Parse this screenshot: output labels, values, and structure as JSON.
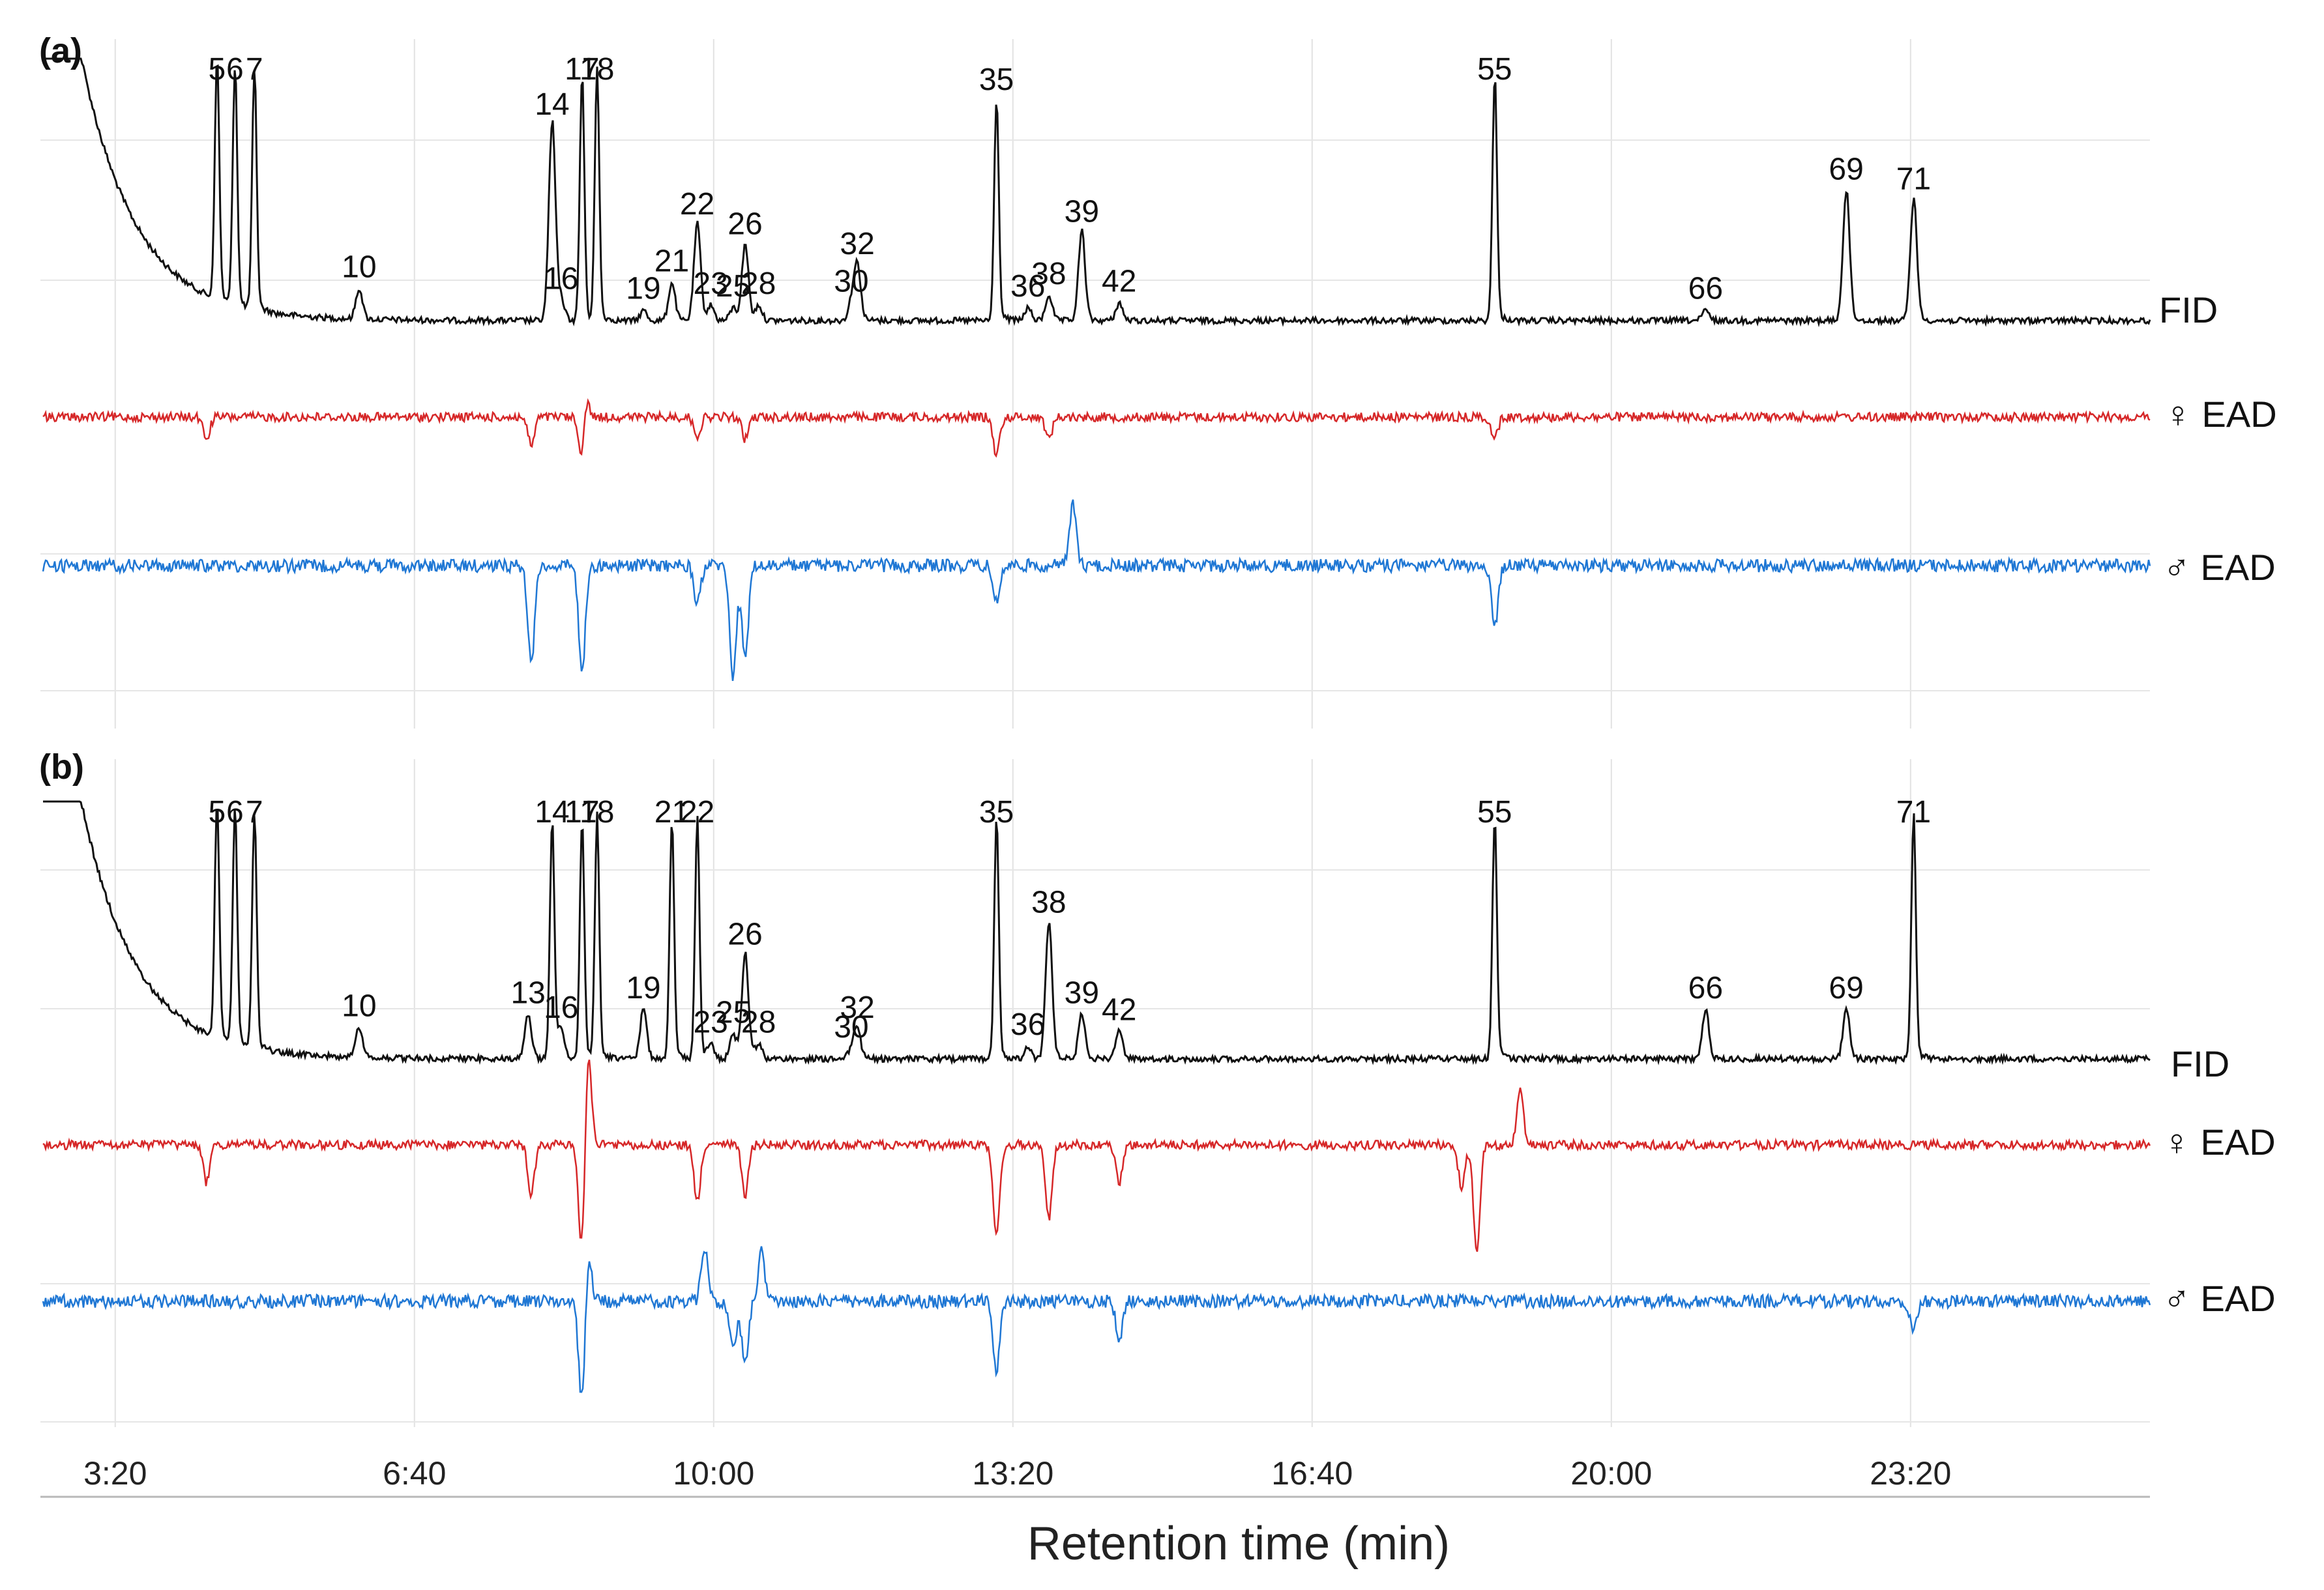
{
  "chart_data": {
    "type": "line",
    "title": "",
    "xlabel": "Retention time (min)",
    "xlim_seconds": [
      150,
      1560
    ],
    "x_ticks": [
      {
        "label": "3:20",
        "seconds": 200
      },
      {
        "label": "6:40",
        "seconds": 400
      },
      {
        "label": "10:00",
        "seconds": 600
      },
      {
        "label": "13:20",
        "seconds": 800
      },
      {
        "label": "16:40",
        "seconds": 1000
      },
      {
        "label": "20:00",
        "seconds": 1200
      },
      {
        "label": "23:20",
        "seconds": 1400
      }
    ],
    "grid": true,
    "trace_colors": {
      "FID": "#111111",
      "female_EAD": "#d62728",
      "male_EAD": "#1f77d4"
    },
    "panels": [
      {
        "label": "(a)",
        "traces": [
          {
            "name": "FID",
            "label": "FID"
          },
          {
            "name": "female_EAD",
            "label": "♀ EAD"
          },
          {
            "name": "male_EAD",
            "label": "♂ EAD"
          }
        ],
        "fid_peaks": [
          {
            "id": "5",
            "t": 268,
            "h": 0.95
          },
          {
            "id": "6",
            "t": 280,
            "h": 0.95
          },
          {
            "id": "7",
            "t": 293,
            "h": 0.95
          },
          {
            "id": "10",
            "t": 363,
            "h": 0.12
          },
          {
            "id": "14",
            "t": 492,
            "h": 0.78
          },
          {
            "id": "16",
            "t": 498,
            "h": 0.08
          },
          {
            "id": "17",
            "t": 512,
            "h": 0.97
          },
          {
            "id": "18",
            "t": 522,
            "h": 0.97
          },
          {
            "id": "19",
            "t": 553,
            "h": 0.04
          },
          {
            "id": "21",
            "t": 572,
            "h": 0.15
          },
          {
            "id": "22",
            "t": 589,
            "h": 0.38
          },
          {
            "id": "23",
            "t": 598,
            "h": 0.06
          },
          {
            "id": "25",
            "t": 613,
            "h": 0.05
          },
          {
            "id": "26",
            "t": 621,
            "h": 0.3
          },
          {
            "id": "28",
            "t": 630,
            "h": 0.06
          },
          {
            "id": "30",
            "t": 692,
            "h": 0.07
          },
          {
            "id": "32",
            "t": 696,
            "h": 0.22
          },
          {
            "id": "35",
            "t": 789,
            "h": 0.88
          },
          {
            "id": "36",
            "t": 810,
            "h": 0.05
          },
          {
            "id": "38",
            "t": 824,
            "h": 0.1
          },
          {
            "id": "39",
            "t": 846,
            "h": 0.35
          },
          {
            "id": "42",
            "t": 871,
            "h": 0.07
          },
          {
            "id": "55",
            "t": 1122,
            "h": 0.97
          },
          {
            "id": "66",
            "t": 1263,
            "h": 0.04
          },
          {
            "id": "69",
            "t": 1357,
            "h": 0.52
          },
          {
            "id": "71",
            "t": 1402,
            "h": 0.48
          }
        ],
        "female_ead_responses": [
          {
            "t": 261,
            "amp": -0.35
          },
          {
            "t": 478,
            "amp": -0.45
          },
          {
            "t": 512,
            "amp": -0.85
          },
          {
            "t": 514,
            "amp": 0.55
          },
          {
            "t": 589,
            "amp": -0.3
          },
          {
            "t": 621,
            "amp": -0.35
          },
          {
            "t": 789,
            "amp": -0.6
          },
          {
            "t": 824,
            "amp": -0.35
          },
          {
            "t": 1122,
            "amp": -0.35
          }
        ],
        "male_ead_responses": [
          {
            "t": 478,
            "amp": -0.8
          },
          {
            "t": 512,
            "amp": -0.85
          },
          {
            "t": 589,
            "amp": -0.3
          },
          {
            "t": 613,
            "amp": -0.9
          },
          {
            "t": 621,
            "amp": -0.75
          },
          {
            "t": 789,
            "amp": -0.3
          },
          {
            "t": 840,
            "amp": 0.5
          },
          {
            "t": 1122,
            "amp": -0.5
          }
        ]
      },
      {
        "label": "(b)",
        "traces": [
          {
            "name": "FID",
            "label": "FID"
          },
          {
            "name": "female_EAD",
            "label": "♀ EAD"
          },
          {
            "name": "male_EAD",
            "label": "♂ EAD"
          }
        ],
        "fid_peaks": [
          {
            "id": "5",
            "t": 268,
            "h": 0.95
          },
          {
            "id": "6",
            "t": 280,
            "h": 0.95
          },
          {
            "id": "7",
            "t": 293,
            "h": 0.95
          },
          {
            "id": "10",
            "t": 363,
            "h": 0.12
          },
          {
            "id": "13",
            "t": 476,
            "h": 0.18
          },
          {
            "id": "14",
            "t": 492,
            "h": 0.95
          },
          {
            "id": "16",
            "t": 498,
            "h": 0.12
          },
          {
            "id": "17",
            "t": 512,
            "h": 0.95
          },
          {
            "id": "18",
            "t": 522,
            "h": 0.95
          },
          {
            "id": "19",
            "t": 553,
            "h": 0.2
          },
          {
            "id": "21",
            "t": 572,
            "h": 0.95
          },
          {
            "id": "22",
            "t": 589,
            "h": 0.95
          },
          {
            "id": "23",
            "t": 598,
            "h": 0.06
          },
          {
            "id": "25",
            "t": 613,
            "h": 0.1
          },
          {
            "id": "26",
            "t": 621,
            "h": 0.42
          },
          {
            "id": "28",
            "t": 630,
            "h": 0.06
          },
          {
            "id": "30",
            "t": 692,
            "h": 0.04
          },
          {
            "id": "32",
            "t": 696,
            "h": 0.12
          },
          {
            "id": "35",
            "t": 789,
            "h": 0.97
          },
          {
            "id": "36",
            "t": 810,
            "h": 0.05
          },
          {
            "id": "38",
            "t": 824,
            "h": 0.55
          },
          {
            "id": "39",
            "t": 846,
            "h": 0.18
          },
          {
            "id": "42",
            "t": 871,
            "h": 0.11
          },
          {
            "id": "55",
            "t": 1122,
            "h": 0.97
          },
          {
            "id": "66",
            "t": 1263,
            "h": 0.2
          },
          {
            "id": "69",
            "t": 1357,
            "h": 0.2
          },
          {
            "id": "71",
            "t": 1402,
            "h": 0.97
          }
        ],
        "female_ead_responses": [
          {
            "t": 261,
            "amp": -0.3
          },
          {
            "t": 478,
            "amp": -0.4
          },
          {
            "t": 512,
            "amp": -0.9
          },
          {
            "t": 516,
            "amp": 0.8
          },
          {
            "t": 589,
            "amp": -0.45
          },
          {
            "t": 621,
            "amp": -0.4
          },
          {
            "t": 789,
            "amp": -0.75
          },
          {
            "t": 824,
            "amp": -0.6
          },
          {
            "t": 871,
            "amp": -0.3
          },
          {
            "t": 1100,
            "amp": -0.35
          },
          {
            "t": 1110,
            "amp": -0.85
          },
          {
            "t": 1139,
            "amp": 0.45
          }
        ],
        "male_ead_responses": [
          {
            "t": 512,
            "amp": -0.85
          },
          {
            "t": 516,
            "amp": 0.4
          },
          {
            "t": 594,
            "amp": 0.45
          },
          {
            "t": 613,
            "amp": -0.4
          },
          {
            "t": 621,
            "amp": -0.5
          },
          {
            "t": 632,
            "amp": 0.4
          },
          {
            "t": 789,
            "amp": -0.55
          },
          {
            "t": 871,
            "amp": -0.3
          },
          {
            "t": 1402,
            "amp": -0.25
          }
        ]
      }
    ]
  }
}
